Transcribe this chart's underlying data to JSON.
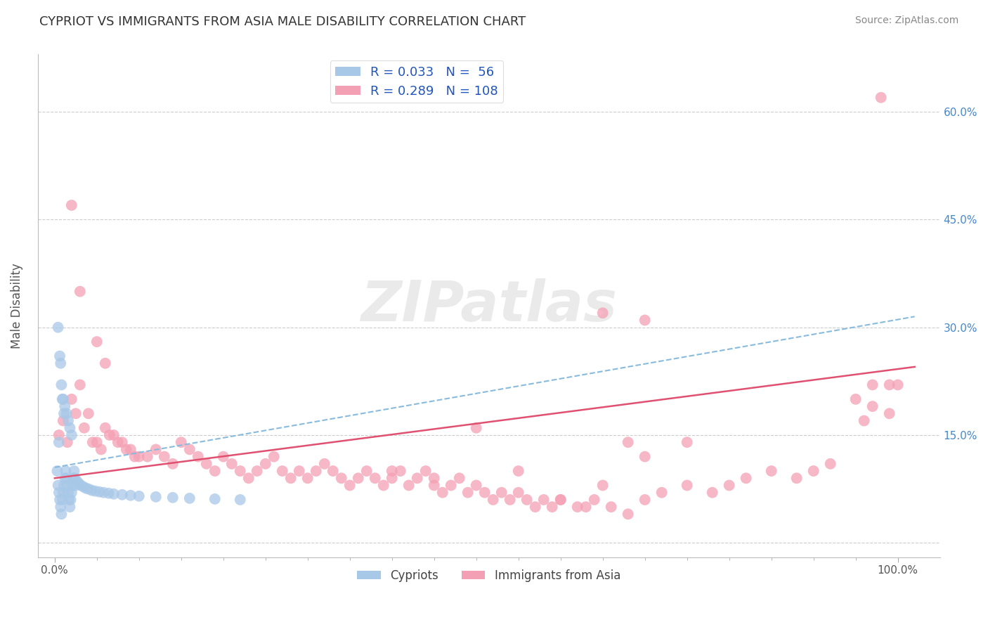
{
  "title": "CYPRIOT VS IMMIGRANTS FROM ASIA MALE DISABILITY CORRELATION CHART",
  "source": "Source: ZipAtlas.com",
  "ylabel": "Male Disability",
  "watermark": "ZIPatlas",
  "legend_entry1": {
    "label": "Cypriots",
    "R": 0.033,
    "N": 56,
    "color": "#a8c8e8",
    "line_color": "#88aacc"
  },
  "legend_entry2": {
    "label": "Immigrants from Asia",
    "R": 0.289,
    "N": 108,
    "color": "#f4a0b4",
    "line_color": "#e05070"
  },
  "xlim": [
    -0.02,
    1.05
  ],
  "ylim": [
    -0.02,
    0.68
  ],
  "ytick_values": [
    0.0,
    0.15,
    0.3,
    0.45,
    0.6
  ],
  "ytick_labels": [
    "",
    "15.0%",
    "30.0%",
    "45.0%",
    "60.0%"
  ],
  "grid_color": "#cccccc",
  "background_color": "#ffffff",
  "cypriot_x": [
    0.003,
    0.004,
    0.005,
    0.006,
    0.007,
    0.008,
    0.009,
    0.01,
    0.011,
    0.012,
    0.013,
    0.014,
    0.015,
    0.016,
    0.017,
    0.018,
    0.019,
    0.02,
    0.021,
    0.022,
    0.023,
    0.024,
    0.025,
    0.027,
    0.029,
    0.031,
    0.034,
    0.037,
    0.04,
    0.044,
    0.048,
    0.053,
    0.058,
    0.064,
    0.07,
    0.08,
    0.09,
    0.1,
    0.12,
    0.14,
    0.16,
    0.19,
    0.22,
    0.004,
    0.006,
    0.008,
    0.01,
    0.012,
    0.014,
    0.016,
    0.018,
    0.02,
    0.005,
    0.007,
    0.009,
    0.011
  ],
  "cypriot_y": [
    0.1,
    0.08,
    0.07,
    0.06,
    0.05,
    0.04,
    0.06,
    0.07,
    0.08,
    0.09,
    0.1,
    0.09,
    0.08,
    0.07,
    0.06,
    0.05,
    0.06,
    0.07,
    0.08,
    0.09,
    0.1,
    0.09,
    0.08,
    0.085,
    0.082,
    0.08,
    0.078,
    0.076,
    0.075,
    0.073,
    0.072,
    0.071,
    0.07,
    0.069,
    0.068,
    0.067,
    0.066,
    0.065,
    0.064,
    0.063,
    0.062,
    0.061,
    0.06,
    0.3,
    0.26,
    0.22,
    0.2,
    0.19,
    0.18,
    0.17,
    0.16,
    0.15,
    0.14,
    0.25,
    0.2,
    0.18
  ],
  "asia_x": [
    0.005,
    0.01,
    0.015,
    0.02,
    0.025,
    0.03,
    0.035,
    0.04,
    0.045,
    0.05,
    0.055,
    0.06,
    0.065,
    0.07,
    0.075,
    0.08,
    0.085,
    0.09,
    0.095,
    0.1,
    0.11,
    0.12,
    0.13,
    0.14,
    0.15,
    0.16,
    0.17,
    0.18,
    0.19,
    0.2,
    0.21,
    0.22,
    0.23,
    0.24,
    0.25,
    0.26,
    0.27,
    0.28,
    0.29,
    0.3,
    0.31,
    0.32,
    0.33,
    0.34,
    0.35,
    0.36,
    0.37,
    0.38,
    0.39,
    0.4,
    0.41,
    0.42,
    0.43,
    0.44,
    0.45,
    0.46,
    0.47,
    0.48,
    0.49,
    0.5,
    0.51,
    0.52,
    0.53,
    0.54,
    0.55,
    0.56,
    0.57,
    0.58,
    0.59,
    0.6,
    0.62,
    0.64,
    0.66,
    0.68,
    0.7,
    0.72,
    0.75,
    0.78,
    0.8,
    0.82,
    0.85,
    0.88,
    0.9,
    0.92,
    0.95,
    0.97,
    0.99,
    0.02,
    0.03,
    0.05,
    0.06,
    0.5,
    0.55,
    0.65,
    0.7,
    0.96,
    0.97,
    0.98,
    0.99,
    1.0,
    0.4,
    0.45,
    0.6,
    0.63,
    0.65,
    0.68,
    0.7,
    0.75
  ],
  "asia_y": [
    0.15,
    0.17,
    0.14,
    0.2,
    0.18,
    0.22,
    0.16,
    0.18,
    0.14,
    0.14,
    0.13,
    0.16,
    0.15,
    0.15,
    0.14,
    0.14,
    0.13,
    0.13,
    0.12,
    0.12,
    0.12,
    0.13,
    0.12,
    0.11,
    0.14,
    0.13,
    0.12,
    0.11,
    0.1,
    0.12,
    0.11,
    0.1,
    0.09,
    0.1,
    0.11,
    0.12,
    0.1,
    0.09,
    0.1,
    0.09,
    0.1,
    0.11,
    0.1,
    0.09,
    0.08,
    0.09,
    0.1,
    0.09,
    0.08,
    0.09,
    0.1,
    0.08,
    0.09,
    0.1,
    0.08,
    0.07,
    0.08,
    0.09,
    0.07,
    0.08,
    0.07,
    0.06,
    0.07,
    0.06,
    0.07,
    0.06,
    0.05,
    0.06,
    0.05,
    0.06,
    0.05,
    0.06,
    0.05,
    0.04,
    0.06,
    0.07,
    0.08,
    0.07,
    0.08,
    0.09,
    0.1,
    0.09,
    0.1,
    0.11,
    0.2,
    0.19,
    0.18,
    0.47,
    0.35,
    0.28,
    0.25,
    0.16,
    0.1,
    0.08,
    0.31,
    0.17,
    0.22,
    0.62,
    0.22,
    0.22,
    0.1,
    0.09,
    0.06,
    0.05,
    0.32,
    0.14,
    0.12,
    0.14
  ]
}
